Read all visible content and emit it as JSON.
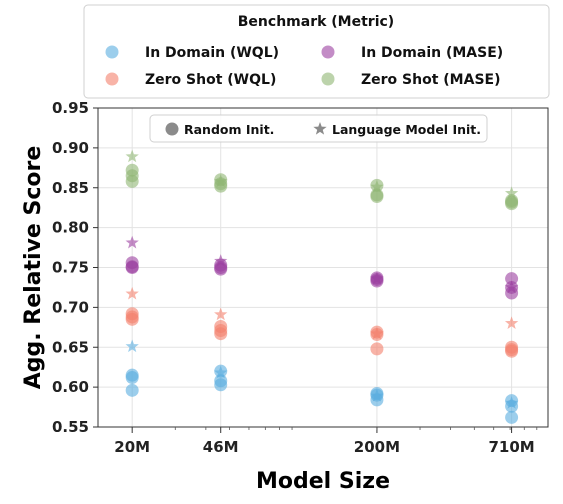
{
  "chart_data": {
    "type": "scatter",
    "title": "",
    "xlabel": "Model Size",
    "ylabel": "Agg. Relative Score",
    "x_scale": "log",
    "x_categories": [
      "20M",
      "46M",
      "200M",
      "710M"
    ],
    "x_values": [
      20,
      46,
      200,
      710
    ],
    "ylim": [
      0.55,
      0.95
    ],
    "yticks": [
      0.55,
      0.6,
      0.65,
      0.7,
      0.75,
      0.8,
      0.85,
      0.9,
      0.95
    ],
    "grid": true,
    "legend": {
      "title": "Benchmark (Metric)",
      "placement": "top-center",
      "entries": [
        "In Domain (WQL)",
        "In Domain (MASE)",
        "Zero Shot (WQL)",
        "Zero Shot (MASE)"
      ]
    },
    "marker_legend": {
      "placement": "top-center-inside",
      "entries": [
        {
          "label": "Random Init.",
          "marker": "circle"
        },
        {
          "label": "Language Model Init.",
          "marker": "star"
        }
      ]
    },
    "series": [
      {
        "name": "In Domain (WQL)",
        "color": "#5aaee0",
        "random_init": [
          [
            20,
            0.615
          ],
          [
            20,
            0.612
          ],
          [
            20,
            0.596
          ],
          [
            46,
            0.62
          ],
          [
            46,
            0.608
          ],
          [
            46,
            0.603
          ],
          [
            200,
            0.592
          ],
          [
            200,
            0.59
          ],
          [
            200,
            0.584
          ],
          [
            710,
            0.583
          ],
          [
            710,
            0.576
          ],
          [
            710,
            0.562
          ]
        ],
        "language_model_init": [
          [
            20,
            0.651
          ],
          [
            46,
            0.618
          ],
          [
            200,
            0.589
          ],
          [
            710,
            0.58
          ]
        ]
      },
      {
        "name": "In Domain (MASE)",
        "color": "#9b3fa0",
        "random_init": [
          [
            20,
            0.756
          ],
          [
            20,
            0.751
          ],
          [
            20,
            0.75
          ],
          [
            46,
            0.753
          ],
          [
            46,
            0.75
          ],
          [
            46,
            0.748
          ],
          [
            200,
            0.737
          ],
          [
            200,
            0.735
          ],
          [
            200,
            0.733
          ],
          [
            710,
            0.736
          ],
          [
            710,
            0.725
          ],
          [
            710,
            0.718
          ]
        ],
        "language_model_init": [
          [
            20,
            0.781
          ],
          [
            46,
            0.758
          ],
          [
            200,
            0.736
          ],
          [
            710,
            0.725
          ]
        ]
      },
      {
        "name": "Zero Shot (WQL)",
        "color": "#f4806c",
        "random_init": [
          [
            20,
            0.692
          ],
          [
            20,
            0.688
          ],
          [
            20,
            0.685
          ],
          [
            46,
            0.676
          ],
          [
            46,
            0.671
          ],
          [
            46,
            0.667
          ],
          [
            200,
            0.669
          ],
          [
            200,
            0.666
          ],
          [
            200,
            0.648
          ],
          [
            710,
            0.65
          ],
          [
            710,
            0.647
          ],
          [
            710,
            0.645
          ]
        ],
        "language_model_init": [
          [
            20,
            0.717
          ],
          [
            46,
            0.691
          ],
          [
            200,
            0.667
          ],
          [
            710,
            0.68
          ]
        ]
      },
      {
        "name": "Zero Shot (MASE)",
        "color": "#8fb573",
        "random_init": [
          [
            20,
            0.872
          ],
          [
            20,
            0.865
          ],
          [
            20,
            0.858
          ],
          [
            46,
            0.86
          ],
          [
            46,
            0.855
          ],
          [
            46,
            0.852
          ],
          [
            200,
            0.853
          ],
          [
            200,
            0.841
          ],
          [
            200,
            0.839
          ],
          [
            710,
            0.834
          ],
          [
            710,
            0.832
          ],
          [
            710,
            0.83
          ]
        ],
        "language_model_init": [
          [
            20,
            0.889
          ],
          [
            46,
            0.858
          ],
          [
            200,
            0.851
          ],
          [
            710,
            0.843
          ]
        ]
      }
    ]
  }
}
